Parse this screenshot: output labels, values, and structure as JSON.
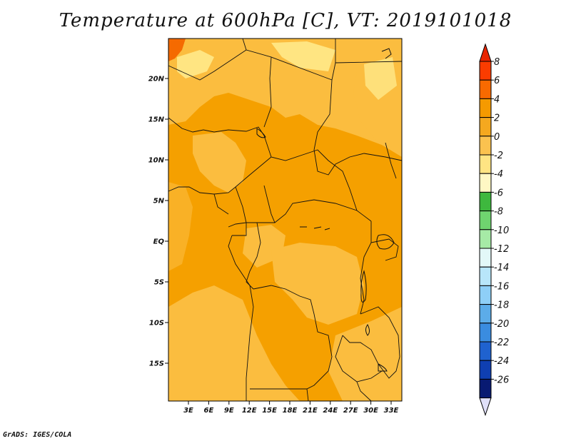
{
  "title": "Temperature at 600hPa [C], VT: 2019101018",
  "credit": "GrADS: IGES/COLA",
  "map": {
    "region": "Central Africa",
    "lat_labels": [
      "20N",
      "15N",
      "10N",
      "5N",
      "EQ",
      "5S",
      "10S",
      "15S"
    ],
    "lon_labels": [
      "3E",
      "6E",
      "9E",
      "12E",
      "15E",
      "18E",
      "21E",
      "24E",
      "27E",
      "30E",
      "33E"
    ],
    "fill_colors": {
      "warm_orange": "#f5a000",
      "light_orange": "#fbbd3f",
      "pale_yellow": "#ffe98a",
      "hot_red_orange": "#f56a00"
    }
  },
  "colorbar": {
    "labels": [
      "8",
      "6",
      "4",
      "2",
      "0",
      "-2",
      "-4",
      "-6",
      "-8",
      "-10",
      "-12",
      "-14",
      "-16",
      "-18",
      "-20",
      "-22",
      "-24",
      "-26"
    ],
    "colors": [
      "#fa3c00",
      "#f86a00",
      "#f59a00",
      "#f5a81f",
      "#fbc24f",
      "#ffe483",
      "#fff8c4",
      "#3eb83e",
      "#6fd46f",
      "#a6eaa6",
      "#e3f8f8",
      "#b8e6fa",
      "#8ecff7",
      "#5cace9",
      "#3a8ce0",
      "#1f62cf",
      "#0f3fb2",
      "#081a72"
    ],
    "top_arrow_color": "#e82400",
    "bottom_arrow_color": "#e0e0f8"
  }
}
